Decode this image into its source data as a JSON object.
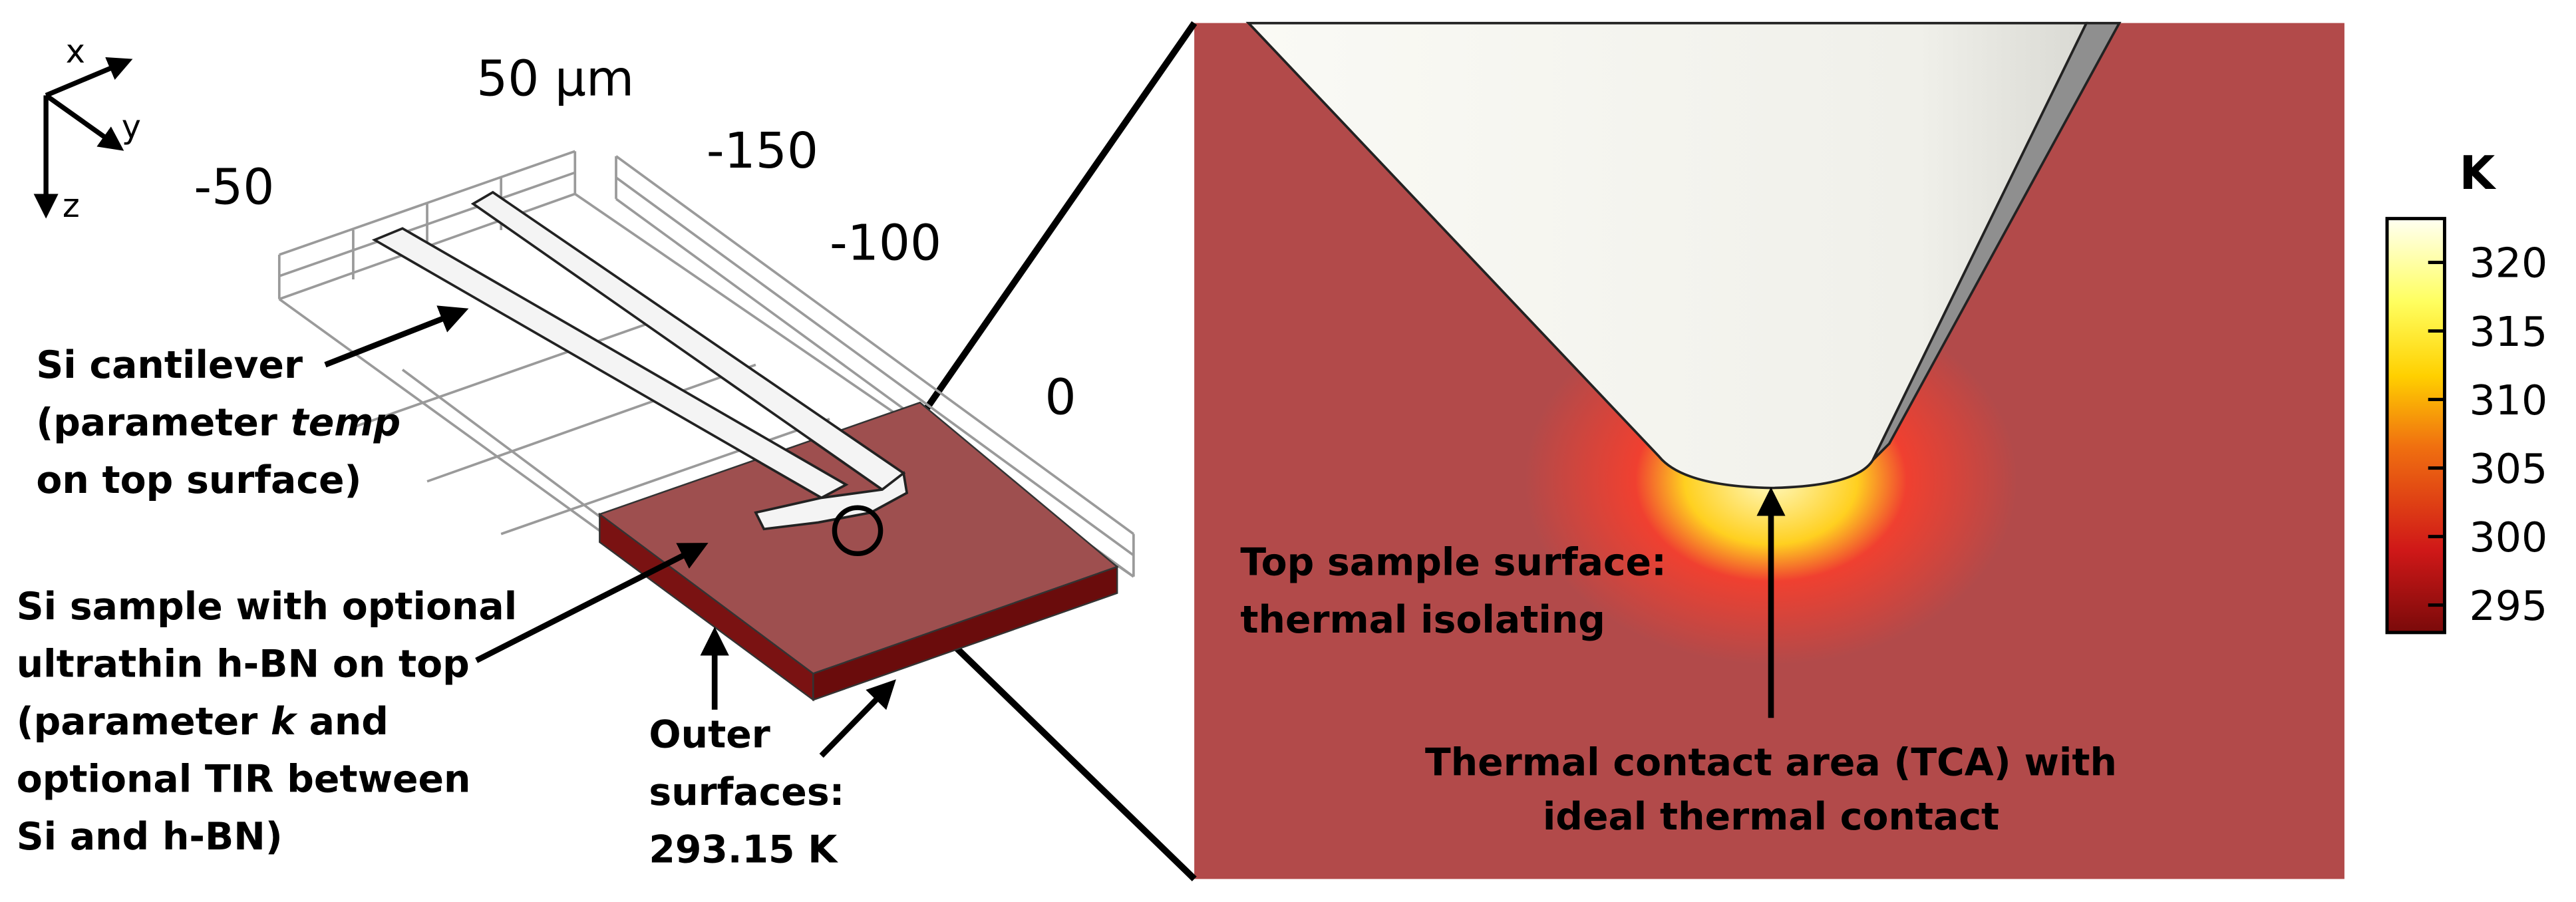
{
  "axes": {
    "x": "x",
    "y": "y",
    "z": "z"
  },
  "scale_labels": [
    "50 µm",
    "-50",
    "-150",
    "-100",
    "0"
  ],
  "annotations": [
    {
      "lines": [
        [
          {
            "text": "Si cantilever"
          }
        ],
        [
          {
            "text": "(parameter "
          },
          {
            "text": "temp",
            "italic": true
          }
        ],
        [
          {
            "text": "on top surface)"
          }
        ]
      ]
    },
    {
      "lines": [
        [
          {
            "text": "Si sample with optional"
          }
        ],
        [
          {
            "text": "ultrathin h-BN on top"
          }
        ],
        [
          {
            "text": "(parameter "
          },
          {
            "text": "k",
            "italic": true
          },
          {
            "text": " and"
          }
        ],
        [
          {
            "text": "optional TIR between"
          }
        ],
        [
          {
            "text": "Si and h-BN)"
          }
        ]
      ]
    },
    {
      "lines": [
        [
          {
            "text": "Outer"
          }
        ],
        [
          {
            "text": "surfaces:"
          }
        ],
        [
          {
            "text": "293.15 K"
          }
        ]
      ]
    },
    {
      "lines": [
        [
          {
            "text": "Top sample surface:"
          }
        ],
        [
          {
            "text": "thermal isolating"
          }
        ]
      ]
    },
    {
      "lines": [
        [
          {
            "text": "Thermal contact area (TCA) with"
          }
        ],
        [
          {
            "text": "ideal thermal contact"
          }
        ]
      ]
    }
  ],
  "colorbar": {
    "unit": "K",
    "range": [
      293,
      323.2
    ],
    "ticks": [
      295,
      300,
      305,
      310,
      315,
      320
    ]
  }
}
